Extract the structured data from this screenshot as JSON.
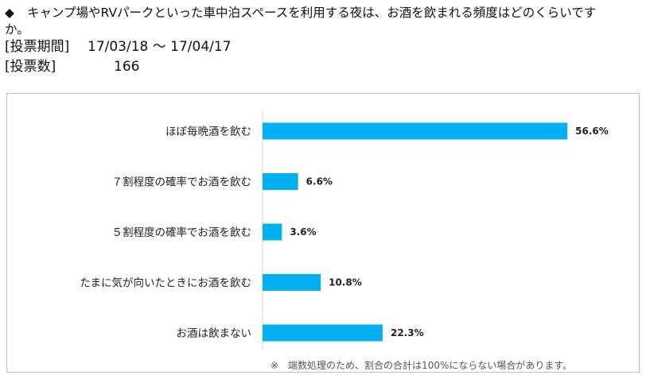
{
  "question": {
    "mark": "◆",
    "line1": "キャンプ場やRVパークといった車中泊スペースを利用する夜は、お酒を飲まれる頻度はどのくらいです",
    "line2": "か。"
  },
  "survey": {
    "period_label": "[投票期間]",
    "period_value": "17/03/18 ～ 17/04/17",
    "count_label": "[投票数]",
    "count_value": "166"
  },
  "chart_data": {
    "type": "bar",
    "orientation": "horizontal",
    "categories": [
      "ほぼ毎晩酒を飲む",
      "７割程度の確率でお酒を飲む",
      "５割程度の確率でお酒を飲む",
      "たまに気が向いたときにお酒を飲む",
      "お酒は飲まない"
    ],
    "values": [
      56.6,
      6.6,
      3.6,
      10.8,
      22.3
    ],
    "value_labels": [
      "56.6%",
      "6.6%",
      "3.6%",
      "10.8%",
      "22.3%"
    ],
    "unit": "%",
    "bar_color": "#00B0F0",
    "grid": false,
    "legend": "none",
    "note": "※　端数処理のため、割合の合計は100%にならない場合があります。"
  }
}
